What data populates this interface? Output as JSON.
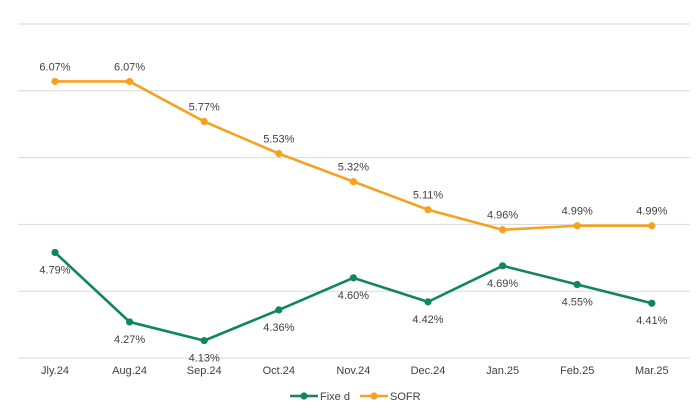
{
  "chart_data": {
    "type": "line",
    "title": "",
    "xlabel": "",
    "ylabel": "",
    "categories": [
      "Jly.24",
      "Aug.24",
      "Sep.24",
      "Oct.24",
      "Nov.24",
      "Dec.24",
      "Jan.25",
      "Feb.25",
      "Mar.25"
    ],
    "ylim": [
      4.0,
      6.5
    ],
    "y_gridlines": [
      4.0,
      4.5,
      5.0,
      5.5,
      6.0,
      6.5
    ],
    "y_tick_labels_shown": false,
    "grid": true,
    "legend_position": "bottom",
    "series": [
      {
        "name": "Fixed",
        "legend_label": "Fixe d",
        "color": "#11865a",
        "values": [
          4.79,
          4.27,
          4.13,
          4.36,
          4.6,
          4.42,
          4.69,
          4.55,
          4.41
        ],
        "labels": [
          "4.79%",
          "4.27%",
          "4.13%",
          "4.36%",
          "4.60%",
          "4.42%",
          "4.69%",
          "4.55%",
          "4.41%"
        ],
        "label_position": "below"
      },
      {
        "name": "SOFR",
        "legend_label": "SOFR",
        "color": "#f5a223",
        "values": [
          6.07,
          6.07,
          5.77,
          5.53,
          5.32,
          5.11,
          4.96,
          4.99,
          4.99
        ],
        "labels": [
          "6.07%",
          "6.07%",
          "5.77%",
          "5.53%",
          "5.32%",
          "5.11%",
          "4.96%",
          "4.99%",
          "4.99%"
        ],
        "label_position": "above"
      }
    ]
  }
}
